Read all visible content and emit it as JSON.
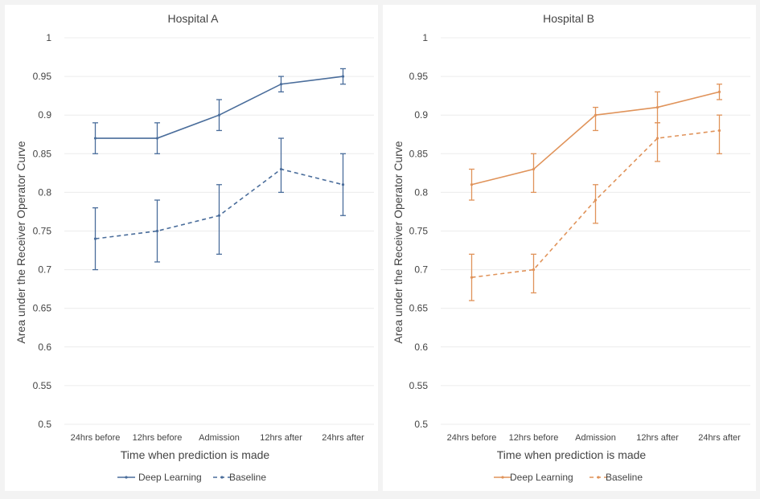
{
  "chart_data": [
    {
      "type": "line",
      "title": "Hospital A",
      "xlabel": "Time when prediction is made",
      "ylabel": "Area under the Receiver  Operator Curve",
      "ylim": [
        0.5,
        1
      ],
      "yticks": [
        "0.5",
        "0.55",
        "0.6",
        "0.65",
        "0.7",
        "0.75",
        "0.8",
        "0.85",
        "0.9",
        "0.95",
        "1"
      ],
      "categories": [
        "24hrs before",
        "12hrs before",
        "Admission",
        "12hrs after",
        "24hrs after"
      ],
      "grid": true,
      "legend_position": "bottom",
      "series": [
        {
          "name": "Deep Learning",
          "style": "solid",
          "color": "#4a6d9b",
          "values": [
            0.87,
            0.87,
            0.9,
            0.94,
            0.95
          ],
          "err_low": [
            0.85,
            0.85,
            0.88,
            0.93,
            0.94
          ],
          "err_high": [
            0.89,
            0.89,
            0.92,
            0.95,
            0.96
          ]
        },
        {
          "name": "Baseline",
          "style": "dashed",
          "color": "#4a6d9b",
          "values": [
            0.74,
            0.75,
            0.77,
            0.83,
            0.81
          ],
          "err_low": [
            0.7,
            0.71,
            0.72,
            0.8,
            0.77
          ],
          "err_high": [
            0.78,
            0.79,
            0.81,
            0.87,
            0.85
          ]
        }
      ]
    },
    {
      "type": "line",
      "title": "Hospital B",
      "xlabel": "Time when prediction is made",
      "ylabel": "Area under the Receiver  Operator Curve",
      "ylim": [
        0.5,
        1
      ],
      "yticks": [
        "0.5",
        "0.55",
        "0.6",
        "0.65",
        "0.7",
        "0.75",
        "0.8",
        "0.85",
        "0.9",
        "0.95",
        "1"
      ],
      "categories": [
        "24hrs before",
        "12hrs before",
        "Admission",
        "12hrs after",
        "24hrs after"
      ],
      "grid": true,
      "legend_position": "bottom",
      "series": [
        {
          "name": "Deep Learning",
          "style": "solid",
          "color": "#e0935a",
          "values": [
            0.81,
            0.83,
            0.9,
            0.91,
            0.93
          ],
          "err_low": [
            0.79,
            0.8,
            0.88,
            0.89,
            0.92
          ],
          "err_high": [
            0.83,
            0.85,
            0.91,
            0.93,
            0.94
          ]
        },
        {
          "name": "Baseline",
          "style": "dashed",
          "color": "#e0935a",
          "values": [
            0.69,
            0.7,
            0.79,
            0.87,
            0.88
          ],
          "err_low": [
            0.66,
            0.67,
            0.76,
            0.84,
            0.85
          ],
          "err_high": [
            0.72,
            0.72,
            0.81,
            0.89,
            0.9
          ]
        }
      ]
    }
  ]
}
